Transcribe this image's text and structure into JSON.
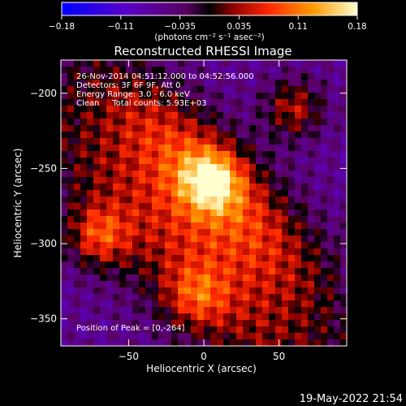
{
  "chart_data": {
    "type": "heatmap",
    "title": "Reconstructed RHESSI Image",
    "xlabel": "Heliocentric X (arcsec)",
    "ylabel": "Heliocentric Y (arcsec)",
    "xlim": [
      -95,
      95
    ],
    "ylim": [
      -368,
      -178
    ],
    "x_ticks": [
      "-50",
      "0",
      "50"
    ],
    "y_ticks": [
      "-200",
      "-250",
      "-300",
      "-350"
    ],
    "colorbar": {
      "ticks": [
        "-0.18",
        "-0.11",
        "-0.035",
        "0.035",
        "0.11",
        "0.18"
      ],
      "range": [
        -0.18,
        0.18
      ],
      "unit_label": "(photons cm⁻² s⁻¹ asec⁻²)"
    },
    "annotations": {
      "time": "26-Nov-2014 04:51:12.000 to 04:52:56.000",
      "detectors": "Detectors: 3F 6F 9F, Att 0",
      "energy": "Energy Range: 3.0 - 6.0 keV",
      "clean": "Clean     Total counts: 5.93E+03",
      "peak": "Position of Peak = [0,-264]"
    },
    "sources": [
      {
        "x": 5,
        "y": -258,
        "peak": 0.18
      },
      {
        "x": -70,
        "y": -295,
        "peak": 0.15
      },
      {
        "x": 60,
        "y": -210,
        "peak": 0.14
      },
      {
        "x": -5,
        "y": -335,
        "peak": 0.11
      }
    ]
  },
  "footer_date": "19-May-2022 21:54"
}
